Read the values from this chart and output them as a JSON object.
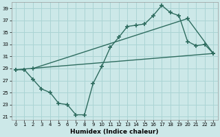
{
  "xlabel": "Humidex (Indice chaleur)",
  "bg_color": "#cce8e8",
  "grid_color": "#aad4d4",
  "line_color": "#2d6b5e",
  "xlim": [
    -0.5,
    23.5
  ],
  "ylim": [
    20.5,
    40.0
  ],
  "xticks": [
    0,
    1,
    2,
    3,
    4,
    5,
    6,
    7,
    8,
    9,
    10,
    11,
    12,
    13,
    14,
    15,
    16,
    17,
    18,
    19,
    20,
    21,
    22,
    23
  ],
  "yticks": [
    21,
    23,
    25,
    27,
    29,
    31,
    33,
    35,
    37,
    39
  ],
  "line1_x": [
    0,
    1,
    2,
    3,
    4,
    5,
    6,
    7,
    8,
    9,
    10,
    11,
    12,
    13,
    14,
    15,
    16,
    17,
    18,
    19,
    20,
    21,
    22,
    23
  ],
  "line1_y": [
    28.8,
    28.8,
    27.2,
    25.6,
    25.0,
    23.2,
    23.0,
    21.3,
    21.3,
    26.5,
    29.3,
    32.5,
    34.2,
    36.0,
    36.2,
    36.4,
    37.8,
    39.5,
    38.3,
    37.8,
    33.5,
    32.8,
    33.0,
    31.5
  ],
  "line2_x": [
    0,
    23
  ],
  "line2_y": [
    28.8,
    31.5
  ],
  "line3_x": [
    2,
    20,
    23
  ],
  "line3_y": [
    29.0,
    37.3,
    31.5
  ],
  "marker": "+",
  "markersize": 5,
  "linewidth": 1.0
}
